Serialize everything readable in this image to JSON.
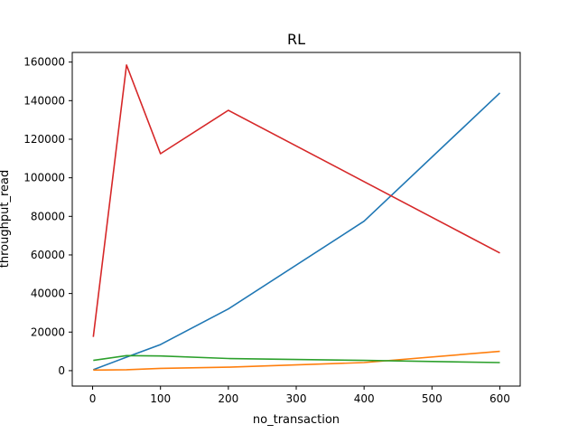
{
  "chart_data": {
    "type": "line",
    "title": "RL",
    "xlabel": "no_transaction",
    "ylabel": "throughput_read",
    "xlim": [
      -30,
      630
    ],
    "ylim": [
      -8000,
      165000
    ],
    "xticks": [
      0,
      100,
      200,
      300,
      400,
      500,
      600
    ],
    "xtick_labels": [
      "0",
      "100",
      "200",
      "300",
      "400",
      "500",
      "600"
    ],
    "yticks": [
      0,
      20000,
      40000,
      60000,
      80000,
      100000,
      120000,
      140000,
      160000
    ],
    "ytick_labels": [
      "0",
      "20000",
      "40000",
      "60000",
      "80000",
      "100000",
      "120000",
      "140000",
      "160000"
    ],
    "grid": false,
    "x": [
      1,
      50,
      100,
      200,
      400,
      600
    ],
    "series": [
      {
        "color": "#1f77b4",
        "values": [
          500,
          7000,
          13500,
          32000,
          77500,
          144000
        ]
      },
      {
        "color": "#ff7f0e",
        "values": [
          300,
          500,
          1200,
          1800,
          4200,
          10000
        ]
      },
      {
        "color": "#2ca02c",
        "values": [
          5300,
          7800,
          7600,
          6300,
          5300,
          4200
        ]
      },
      {
        "color": "#d62728",
        "values": [
          17500,
          158500,
          112500,
          135000,
          98000,
          61000
        ]
      }
    ]
  }
}
